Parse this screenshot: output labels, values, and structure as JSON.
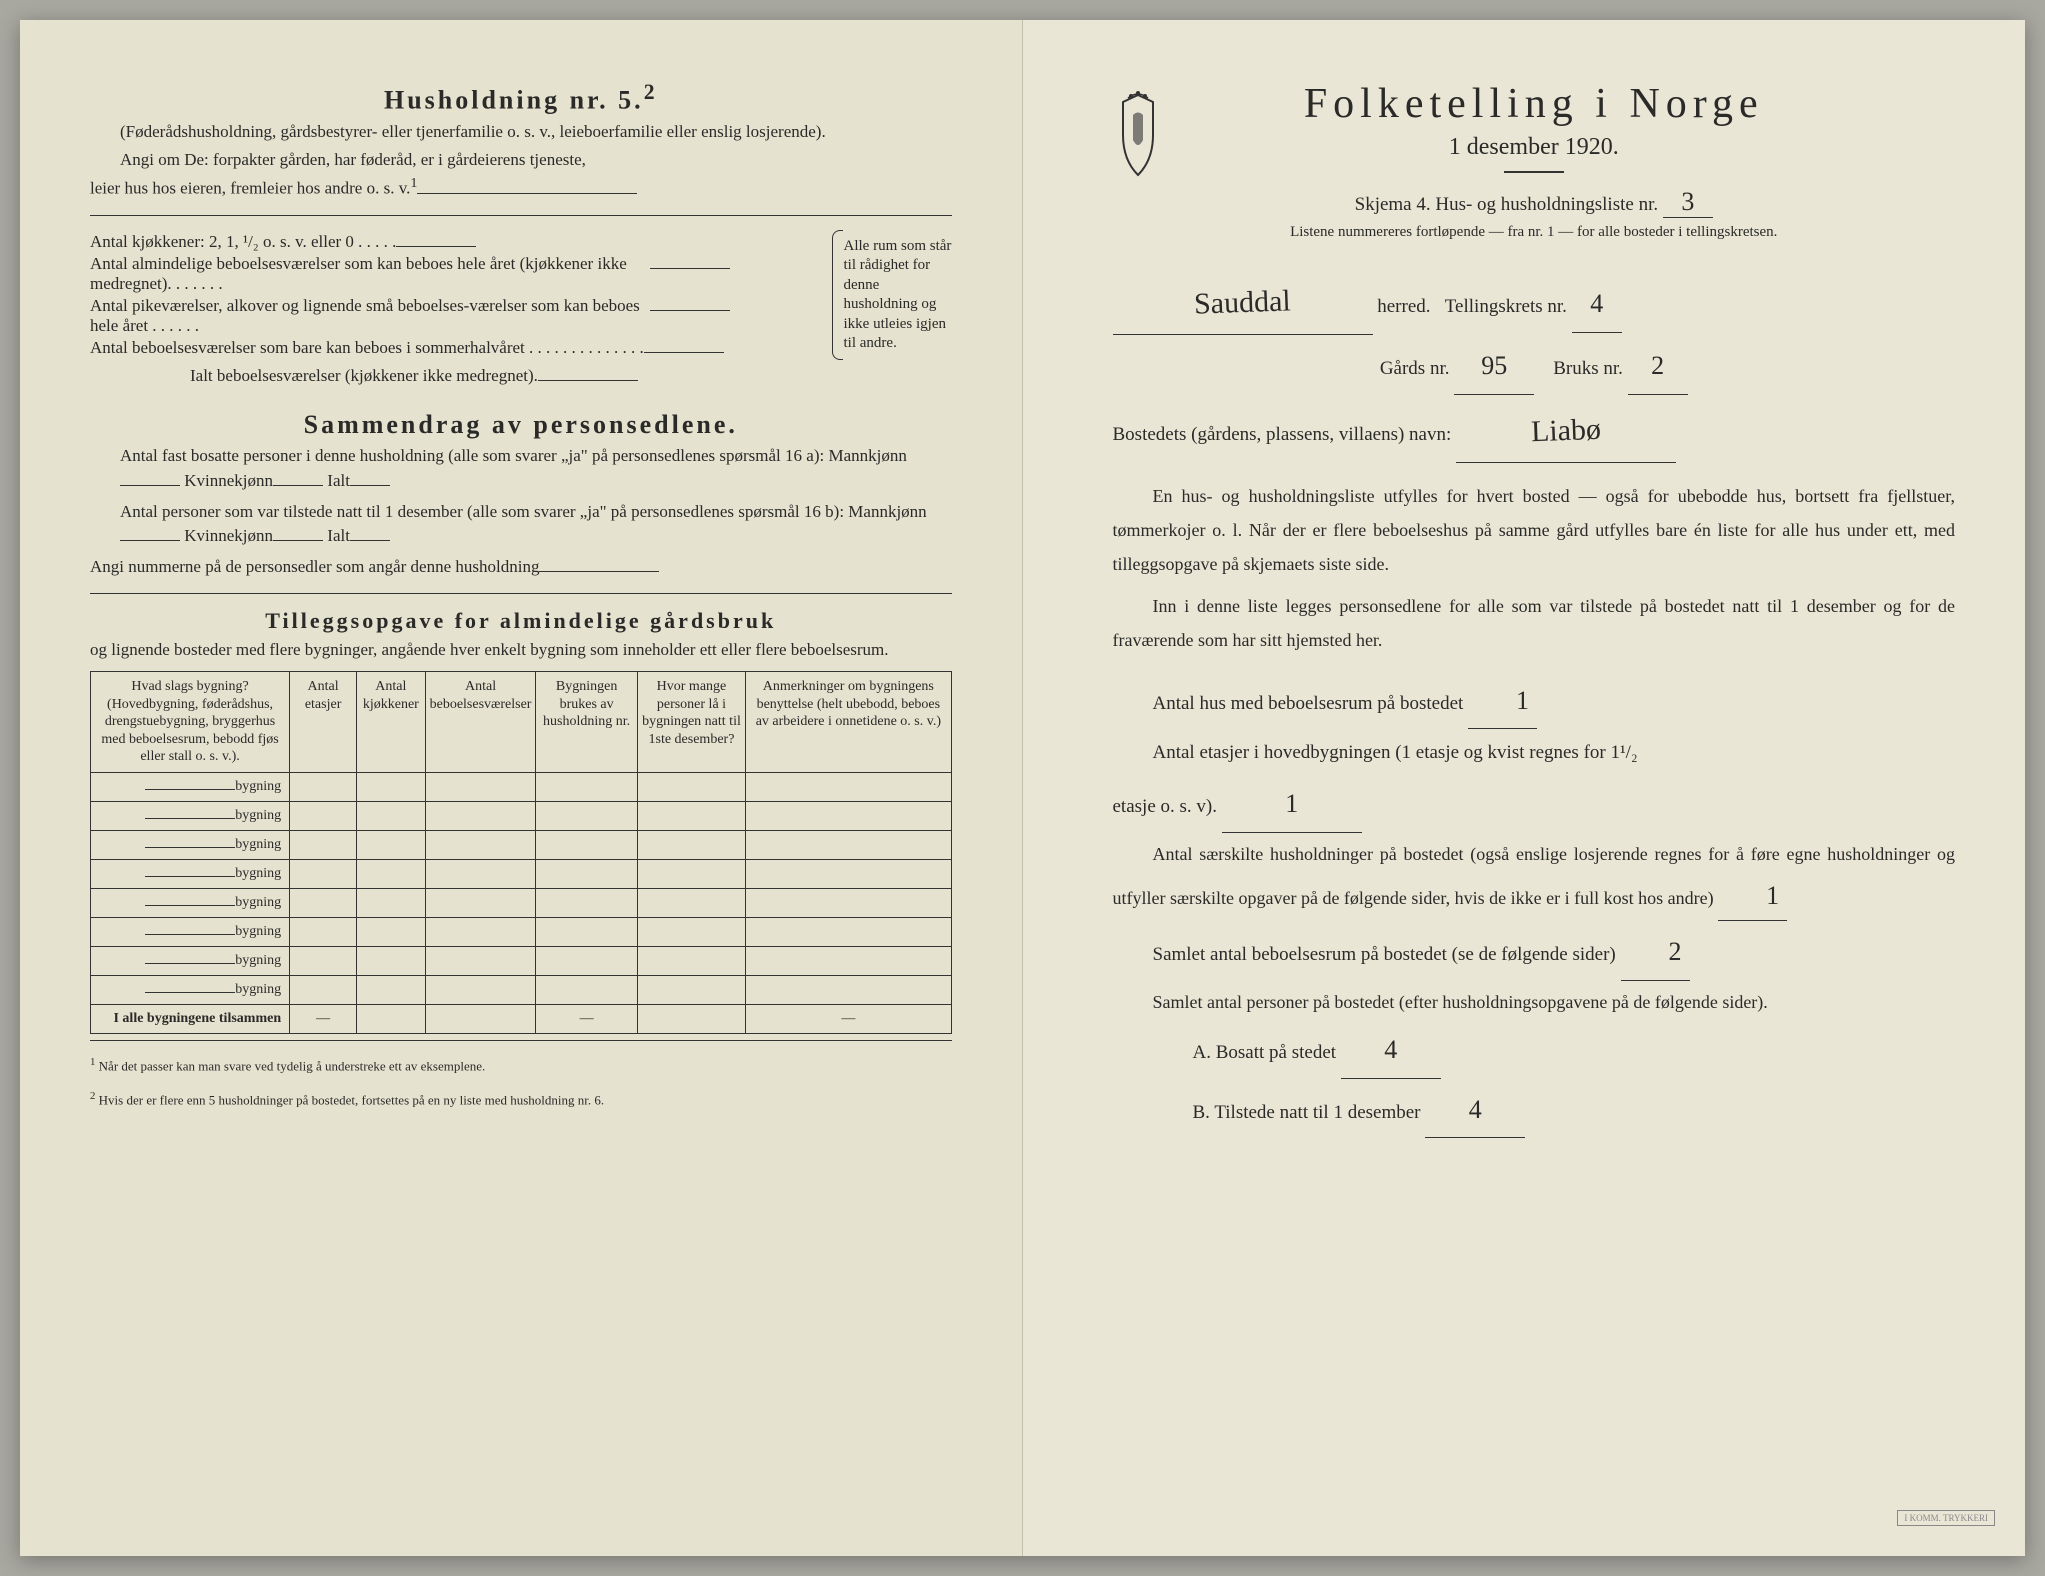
{
  "left": {
    "household_title": "Husholdning nr. 5.",
    "household_sup": "2",
    "household_note": "(Føderådshusholdning, gårdsbestyrer- eller tjenerfamilie o. s. v., leieboerfamilie eller enslig losjerende).",
    "angi_line1": "Angi om De: forpakter gården, har føderåd, er i gårdeierens tjeneste,",
    "angi_line2": "leier hus hos eieren, fremleier hos andre o. s. v.",
    "kitchen_line": "Antal kjøkkener: 2, 1, ¹/₂ o. s. v. eller 0 . . . . .",
    "room_lines": [
      "Antal almindelige beboelsesværelser som kan beboes hele året (kjøkkener ikke medregnet). . . . . . .",
      "Antal pikeværelser, alkover og lignende små beboelses-værelser som kan beboes hele året . . . . . .",
      "Antal beboelsesværelser som bare kan beboes i sommerhalvåret . . . . . . . . . . . . . ."
    ],
    "brace_text": "Alle rum som står til rådighet for denne husholdning og ikke utleies igjen til andre.",
    "ialt_line": "Ialt beboelsesværelser (kjøkkener ikke medregnet).",
    "summary_title": "Sammendrag av personsedlene.",
    "summary_l1": "Antal fast bosatte personer i denne husholdning (alle som svarer „ja\" på personsedlenes spørsmål 16 a): Mannkjønn",
    "summary_kv": "Kvinnekjønn",
    "summary_ialt": "Ialt",
    "summary_l2": "Antal personer som var tilstede natt til 1 desember (alle som svarer „ja\" på personsedlenes spørsmål 16 b): Mannkjønn",
    "summary_l3": "Angi nummerne på de personsedler som angår denne husholdning",
    "tillegg_title": "Tilleggsopgave for almindelige gårdsbruk",
    "tillegg_sub": "og lignende bosteder med flere bygninger, angående hver enkelt bygning som inneholder ett eller flere beboelsesrum.",
    "table": {
      "headers": [
        "Hvad slags bygning?\n(Hovedbygning, føderådshus, drengstuebygning, bryggerhus med beboelsesrum, bebodd fjøs eller stall o. s. v.).",
        "Antal etasjer",
        "Antal kjøkkener",
        "Antal beboelsesværelser",
        "Bygningen brukes av husholdning nr.",
        "Hvor mange personer lå i bygningen natt til 1ste desember?",
        "Anmerkninger om bygningens benyttelse (helt ubebodd, beboes av arbeidere i onnetidene o. s. v.)"
      ],
      "row_label": "bygning",
      "row_count": 8,
      "total_label": "I alle bygningene tilsammen"
    },
    "footnote1": "Når det passer kan man svare ved tydelig å understreke ett av eksemplene.",
    "footnote2": "Hvis der er flere enn 5 husholdninger på bostedet, fortsettes på en ny liste med husholdning nr. 6."
  },
  "right": {
    "main_title": "Folketelling i Norge",
    "sub_date": "1 desember 1920.",
    "schema": "Skjema 4. Hus- og husholdningsliste nr.",
    "schema_nr": "3",
    "listene": "Listene nummereres fortløpende — fra nr. 1 — for alle bosteder i tellingskretsen.",
    "herred_value": "Sauddal",
    "herred_label": "herred.",
    "tellingskrets": "Tellingskrets nr.",
    "tellingskrets_nr": "4",
    "gards": "Gårds nr.",
    "gards_nr": "95",
    "bruks": "Bruks nr.",
    "bruks_nr": "2",
    "bosted": "Bostedets (gårdens, plassens, villaens) navn:",
    "bosted_value": "Liabø",
    "para1": "En hus- og husholdningsliste utfylles for hvert bosted — også for ubebodde hus, bortsett fra fjellstuer, tømmerkojer o. l. Når der er flere beboelseshus på samme gård utfylles bare én liste for alle hus under ett, med tilleggsopgave på skjemaets siste side.",
    "para2": "Inn i denne liste legges personsedlene for alle som var tilstede på bostedet natt til 1 desember og for de fraværende som har sitt hjemsted her.",
    "q1": "Antal hus med beboelsesrum på bostedet",
    "q1_val": "1",
    "q2a": "Antal etasjer i hovedbygningen (1 etasje og kvist regnes for 1¹/₂",
    "q2b": "etasje o. s. v).",
    "q2_val": "1",
    "q3": "Antal særskilte husholdninger på bostedet (også enslige losjerende regnes for å føre egne husholdninger og utfyller særskilte opgaver på de følgende sider, hvis de ikke er i full kost hos andre)",
    "q3_val": "1",
    "q4": "Samlet antal beboelsesrum på bostedet (se de følgende sider)",
    "q4_val": "2",
    "q5": "Samlet antal personer på bostedet (efter husholdningsopgavene på de følgende sider).",
    "qA": "A. Bosatt på stedet",
    "qA_val": "4",
    "qB": "B. Tilstede natt til 1 desember",
    "qB_val": "4"
  }
}
